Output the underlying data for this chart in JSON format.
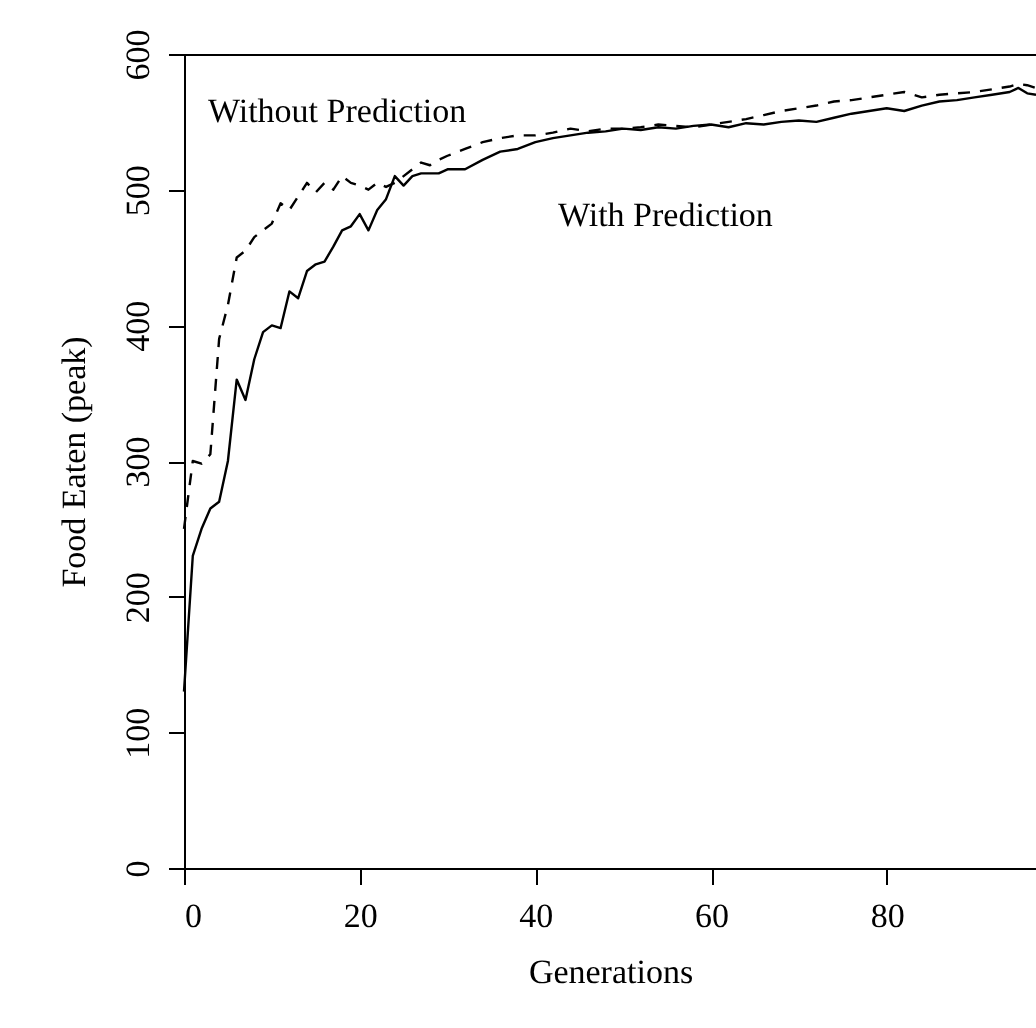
{
  "chart_data": {
    "type": "line",
    "xlabel": "Generations",
    "ylabel": "Food Eaten (peak)",
    "xlim": [
      0,
      97
    ],
    "ylim": [
      0,
      600
    ],
    "xticks": [
      0,
      20,
      40,
      60,
      80
    ],
    "yticks": [
      0,
      100,
      200,
      300,
      400,
      500,
      600
    ],
    "grid": false,
    "series": [
      {
        "color": "#000000",
        "line_style": "solid",
        "x": [
          0,
          1,
          2,
          3,
          4,
          5,
          6,
          7,
          8,
          9,
          10,
          11,
          12,
          13,
          14,
          15,
          16,
          17,
          18,
          19,
          20,
          21,
          22,
          23,
          24,
          25,
          26,
          27,
          28,
          29,
          30,
          32,
          34,
          36,
          38,
          40,
          42,
          44,
          46,
          48,
          50,
          52,
          54,
          56,
          58,
          60,
          62,
          64,
          66,
          68,
          70,
          72,
          74,
          76,
          78,
          80,
          82,
          84,
          86,
          88,
          90,
          92,
          94,
          95,
          96,
          97
        ],
        "values": [
          130,
          230,
          250,
          265,
          270,
          300,
          360,
          345,
          375,
          395,
          400,
          398,
          425,
          420,
          440,
          445,
          447,
          458,
          470,
          473,
          482,
          470,
          485,
          493,
          510,
          503,
          510,
          512,
          512,
          512,
          515,
          515,
          522,
          528,
          530,
          535,
          538,
          540,
          542,
          543,
          545,
          544,
          546,
          545,
          547,
          548,
          546,
          549,
          548,
          550,
          551,
          550,
          553,
          556,
          558,
          560,
          558,
          562,
          565,
          566,
          568,
          570,
          572,
          575,
          571,
          570
        ]
      },
      {
        "color": "#000000",
        "line_style": "dashed",
        "x": [
          0,
          1,
          2,
          3,
          4,
          5,
          6,
          7,
          8,
          9,
          10,
          11,
          12,
          13,
          14,
          15,
          16,
          17,
          18,
          19,
          20,
          21,
          22,
          23,
          24,
          25,
          26,
          27,
          28,
          29,
          30,
          32,
          34,
          36,
          38,
          40,
          42,
          44,
          46,
          48,
          50,
          52,
          54,
          56,
          58,
          60,
          62,
          64,
          66,
          68,
          70,
          72,
          74,
          76,
          78,
          80,
          82,
          84,
          86,
          88,
          90,
          92,
          94,
          95,
          96,
          97
        ],
        "values": [
          250,
          300,
          298,
          305,
          390,
          415,
          450,
          455,
          465,
          470,
          475,
          490,
          485,
          495,
          505,
          498,
          505,
          500,
          510,
          505,
          503,
          500,
          505,
          502,
          505,
          510,
          515,
          520,
          518,
          522,
          525,
          530,
          535,
          538,
          540,
          540,
          542,
          545,
          543,
          545,
          545,
          546,
          548,
          547,
          546,
          548,
          550,
          552,
          555,
          558,
          560,
          562,
          565,
          566,
          568,
          570,
          572,
          568,
          570,
          571,
          572,
          574,
          576,
          578,
          577,
          575
        ]
      }
    ],
    "annotations": [
      "Without Prediction",
      "With Prediction"
    ]
  }
}
